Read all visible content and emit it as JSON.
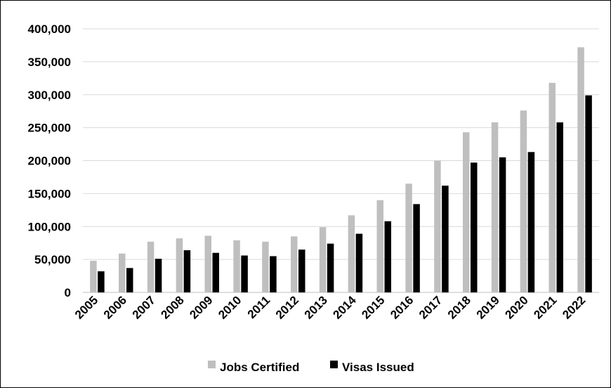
{
  "chart_data": {
    "type": "bar",
    "title": "",
    "xlabel": "",
    "ylabel": "",
    "categories": [
      "2005",
      "2006",
      "2007",
      "2008",
      "2009",
      "2010",
      "2011",
      "2012",
      "2013",
      "2014",
      "2015",
      "2016",
      "2017",
      "2018",
      "2019",
      "2020",
      "2021",
      "2022"
    ],
    "series": [
      {
        "name": "Jobs Certified",
        "color": "#bfbfbf",
        "values": [
          48000,
          59000,
          77000,
          82000,
          86000,
          79000,
          77000,
          85000,
          99000,
          117000,
          140000,
          165000,
          200000,
          243000,
          258000,
          276000,
          318000,
          372000
        ]
      },
      {
        "name": "Visas Issued",
        "color": "#000000",
        "values": [
          32000,
          37000,
          51000,
          64000,
          60000,
          56000,
          55000,
          65000,
          74000,
          89000,
          108000,
          134000,
          162000,
          197000,
          205000,
          213000,
          258000,
          299000
        ]
      }
    ],
    "ylim": [
      0,
      400000
    ],
    "yticks": [
      "0",
      "50,000",
      "100,000",
      "150,000",
      "200,000",
      "250,000",
      "300,000",
      "350,000",
      "400,000"
    ],
    "grid": true,
    "legend_position": "bottom"
  }
}
